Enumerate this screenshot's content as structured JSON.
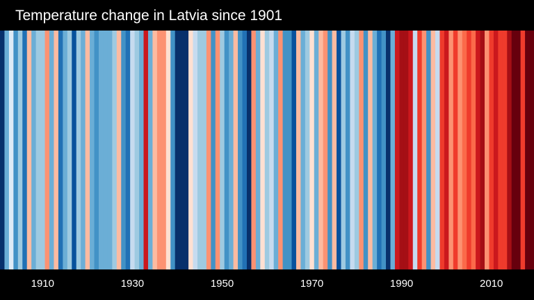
{
  "chart_data": {
    "type": "heatmap",
    "title": "Temperature change in Latvia since 1901",
    "xlabel": "",
    "ylabel": "",
    "x_range": [
      1901,
      2019
    ],
    "x_ticks": [
      "1910",
      "1930",
      "1950",
      "1970",
      "1990",
      "2010"
    ],
    "grid": false,
    "legend": "none",
    "color_scale": {
      "min_value": -1,
      "max_value": 1,
      "colors": [
        "#08306b",
        "#08519c",
        "#2171b5",
        "#4292c6",
        "#6baed6",
        "#9ecae1",
        "#c6dbef",
        "#deebf7",
        "#fee0d2",
        "#fcbba1",
        "#fc9272",
        "#fb6a4a",
        "#ef3b2c",
        "#cb181d",
        "#a50f15",
        "#67000d"
      ]
    },
    "series": [
      {
        "x": [
          1901,
          1902,
          1903,
          1904,
          1905,
          1906,
          1907,
          1908,
          1909,
          1910,
          1911,
          1912,
          1913,
          1914,
          1915,
          1916,
          1917,
          1918,
          1919,
          1920,
          1921,
          1922,
          1923,
          1924,
          1925,
          1926,
          1927,
          1928,
          1929,
          1930,
          1931,
          1932,
          1933,
          1934,
          1935,
          1936,
          1937,
          1938,
          1939,
          1940,
          1941,
          1942,
          1943,
          1944,
          1945,
          1946,
          1947,
          1948,
          1949,
          1950,
          1951,
          1952,
          1953,
          1954,
          1955,
          1956,
          1957,
          1958,
          1959,
          1960,
          1961,
          1962,
          1963,
          1964,
          1965,
          1966,
          1967,
          1968,
          1969,
          1970,
          1971,
          1972,
          1973,
          1974,
          1975,
          1976,
          1977,
          1978,
          1979,
          1980,
          1981,
          1982,
          1983,
          1984,
          1985,
          1986,
          1987,
          1988,
          1989,
          1990,
          1991,
          1992,
          1993,
          1994,
          1995,
          1996,
          1997,
          1998,
          1999,
          2000,
          2001,
          2002,
          2003,
          2004,
          2005,
          2006,
          2007,
          2008,
          2009,
          2010,
          2011,
          2012,
          2013,
          2014,
          2015,
          2016,
          2017,
          2018,
          2019
        ],
        "values": [
          -0.92,
          -0.45,
          -0.05,
          -0.62,
          -0.35,
          -0.72,
          0.18,
          -0.4,
          -0.28,
          -0.32,
          0.25,
          -0.38,
          0.15,
          -0.7,
          -0.5,
          -0.28,
          -0.82,
          -0.35,
          -0.4,
          0.2,
          -0.42,
          -0.62,
          -0.48,
          -0.45,
          -0.42,
          -0.36,
          0.22,
          -0.6,
          -0.66,
          -0.25,
          -0.36,
          -0.5,
          0.65,
          -0.48,
          0.15,
          0.3,
          0.32,
          0.1,
          -0.55,
          -1.0,
          -1.0,
          -0.92,
          0.1,
          -0.2,
          -0.3,
          -0.34,
          0.28,
          -0.55,
          0.35,
          -0.3,
          -0.62,
          -0.48,
          0.2,
          -0.58,
          -0.7,
          -0.96,
          0.3,
          -0.4,
          0.12,
          -0.35,
          -0.2,
          -0.45,
          0.25,
          -0.6,
          -0.52,
          -0.78,
          0.18,
          -0.48,
          -0.3,
          0.05,
          -0.45,
          0.15,
          0.25,
          -0.55,
          0.22,
          -0.82,
          -0.35,
          -0.62,
          -0.2,
          -0.3,
          0.3,
          -0.55,
          0.15,
          -0.45,
          -0.72,
          -0.58,
          -0.9,
          -0.42,
          0.72,
          0.85,
          0.8,
          0.7,
          -0.15,
          0.55,
          0.35,
          -0.55,
          0.2,
          -0.2,
          0.55,
          0.7,
          0.35,
          0.6,
          0.3,
          0.45,
          0.58,
          0.4,
          0.68,
          0.75,
          0.25,
          0.55,
          0.72,
          0.5,
          0.62,
          0.8,
          0.95,
          0.88,
          0.6,
          0.92,
          0.98
        ]
      }
    ]
  }
}
